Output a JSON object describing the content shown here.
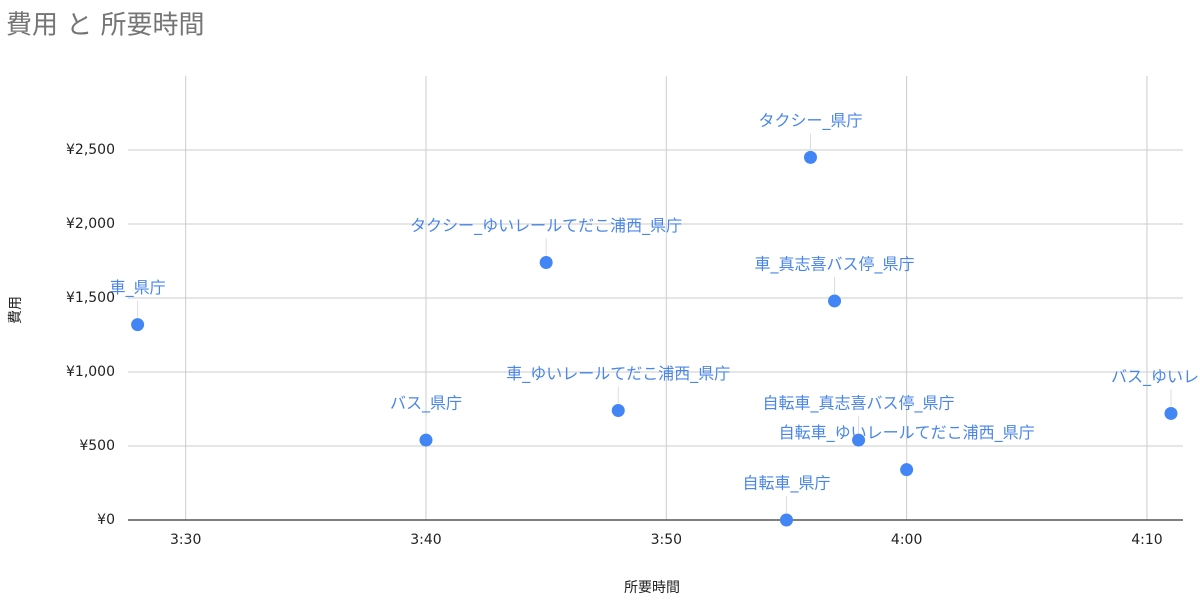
{
  "chart_data": {
    "type": "scatter",
    "title": "費用 と 所要時間",
    "x_label": "所要時間",
    "y_label": "費用",
    "x": [
      208,
      220,
      225,
      228,
      235,
      236,
      237,
      238,
      240,
      251
    ],
    "values": [
      1320,
      540,
      1740,
      740,
      0,
      2450,
      1480,
      540,
      340,
      720
    ],
    "point_labels": [
      "車_県庁",
      "バス_県庁",
      "タクシー_ゆいレールてだこ浦西_県庁",
      "車_ゆいレールてだこ浦西_県庁",
      "自転車_県庁",
      "タクシー_県庁",
      "車_真志喜バス停_県庁",
      "自転車_真志喜バス停_県庁",
      "自転車_ゆいレールてだこ浦西_県庁",
      "バス_ゆいレール"
    ],
    "color": "#4285f4",
    "xlim": [
      207.6,
      251.5
    ],
    "xticks": [
      {
        "value": 210,
        "label": "3:30"
      },
      {
        "value": 220,
        "label": "3:40"
      },
      {
        "value": 230,
        "label": "3:50"
      },
      {
        "value": 240,
        "label": "4:00"
      },
      {
        "value": 250,
        "label": "4:10"
      }
    ],
    "ylim": [
      0,
      3000
    ],
    "yticks": [
      {
        "value": 0,
        "label": "¥0"
      },
      {
        "value": 500,
        "label": "¥500"
      },
      {
        "value": 1000,
        "label": "¥1,000"
      },
      {
        "value": 1500,
        "label": "¥1,500"
      },
      {
        "value": 2000,
        "label": "¥2,000"
      },
      {
        "value": 2500,
        "label": "¥2,500"
      }
    ],
    "grid": true
  }
}
